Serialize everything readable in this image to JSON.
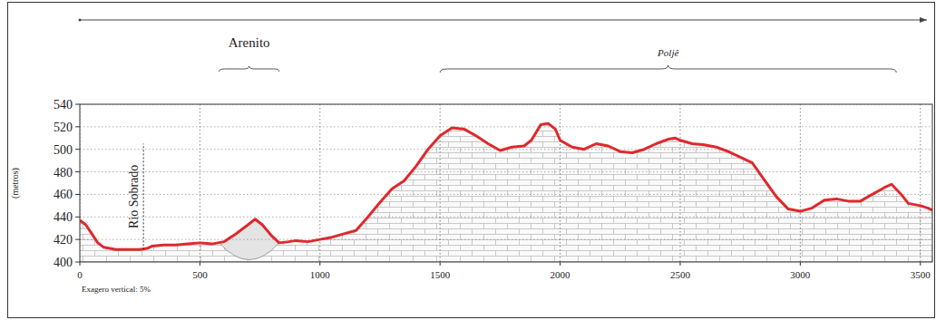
{
  "chart_data": {
    "type": "line",
    "y_label": "(metros)",
    "note": "Exagero vertical: 5%",
    "color": "#e0282c",
    "x": [
      0,
      25,
      50,
      75,
      100,
      150,
      200,
      250,
      280,
      300,
      350,
      400,
      450,
      500,
      550,
      600,
      650,
      700,
      730,
      760,
      800,
      830,
      870,
      900,
      950,
      1000,
      1050,
      1100,
      1150,
      1200,
      1250,
      1300,
      1350,
      1400,
      1450,
      1500,
      1550,
      1600,
      1650,
      1700,
      1750,
      1800,
      1850,
      1880,
      1920,
      1950,
      1980,
      2000,
      2050,
      2100,
      2150,
      2200,
      2250,
      2300,
      2350,
      2400,
      2450,
      2480,
      2500,
      2550,
      2600,
      2650,
      2700,
      2750,
      2800,
      2850,
      2900,
      2950,
      3000,
      3050,
      3100,
      3150,
      3200,
      3250,
      3300,
      3350,
      3380,
      3420,
      3450,
      3500,
      3530,
      3550
    ],
    "values": [
      437,
      433,
      425,
      417,
      413,
      411,
      411,
      411,
      412,
      414,
      415,
      415,
      416,
      417,
      416,
      418,
      425,
      433,
      438,
      433,
      423,
      417,
      418,
      419,
      418,
      420,
      422,
      425,
      428,
      440,
      453,
      465,
      472,
      485,
      500,
      512,
      519,
      518,
      512,
      505,
      499,
      502,
      503,
      508,
      522,
      523,
      518,
      508,
      502,
      500,
      505,
      503,
      498,
      497,
      500,
      505,
      509,
      510,
      508,
      505,
      504,
      502,
      498,
      493,
      488,
      473,
      458,
      447,
      445,
      448,
      455,
      456,
      454,
      454,
      460,
      466,
      469,
      460,
      452,
      450,
      448,
      446
    ],
    "xlim": [
      0,
      3550
    ],
    "ylim": [
      400,
      540
    ],
    "xticks": [
      0,
      500,
      1000,
      1500,
      2000,
      2500,
      3000,
      3500
    ],
    "yticks": [
      400,
      420,
      440,
      460,
      480,
      500,
      520,
      540
    ],
    "grid": true,
    "annotations": [
      {
        "text": "Arenito",
        "x": [
          580,
          830
        ],
        "bottom": 402
      },
      {
        "text": "Poljê",
        "x": [
          1500,
          3400
        ]
      },
      {
        "text": "Rio Sobrado",
        "x": 265,
        "y": [
          411,
          505
        ]
      }
    ]
  }
}
